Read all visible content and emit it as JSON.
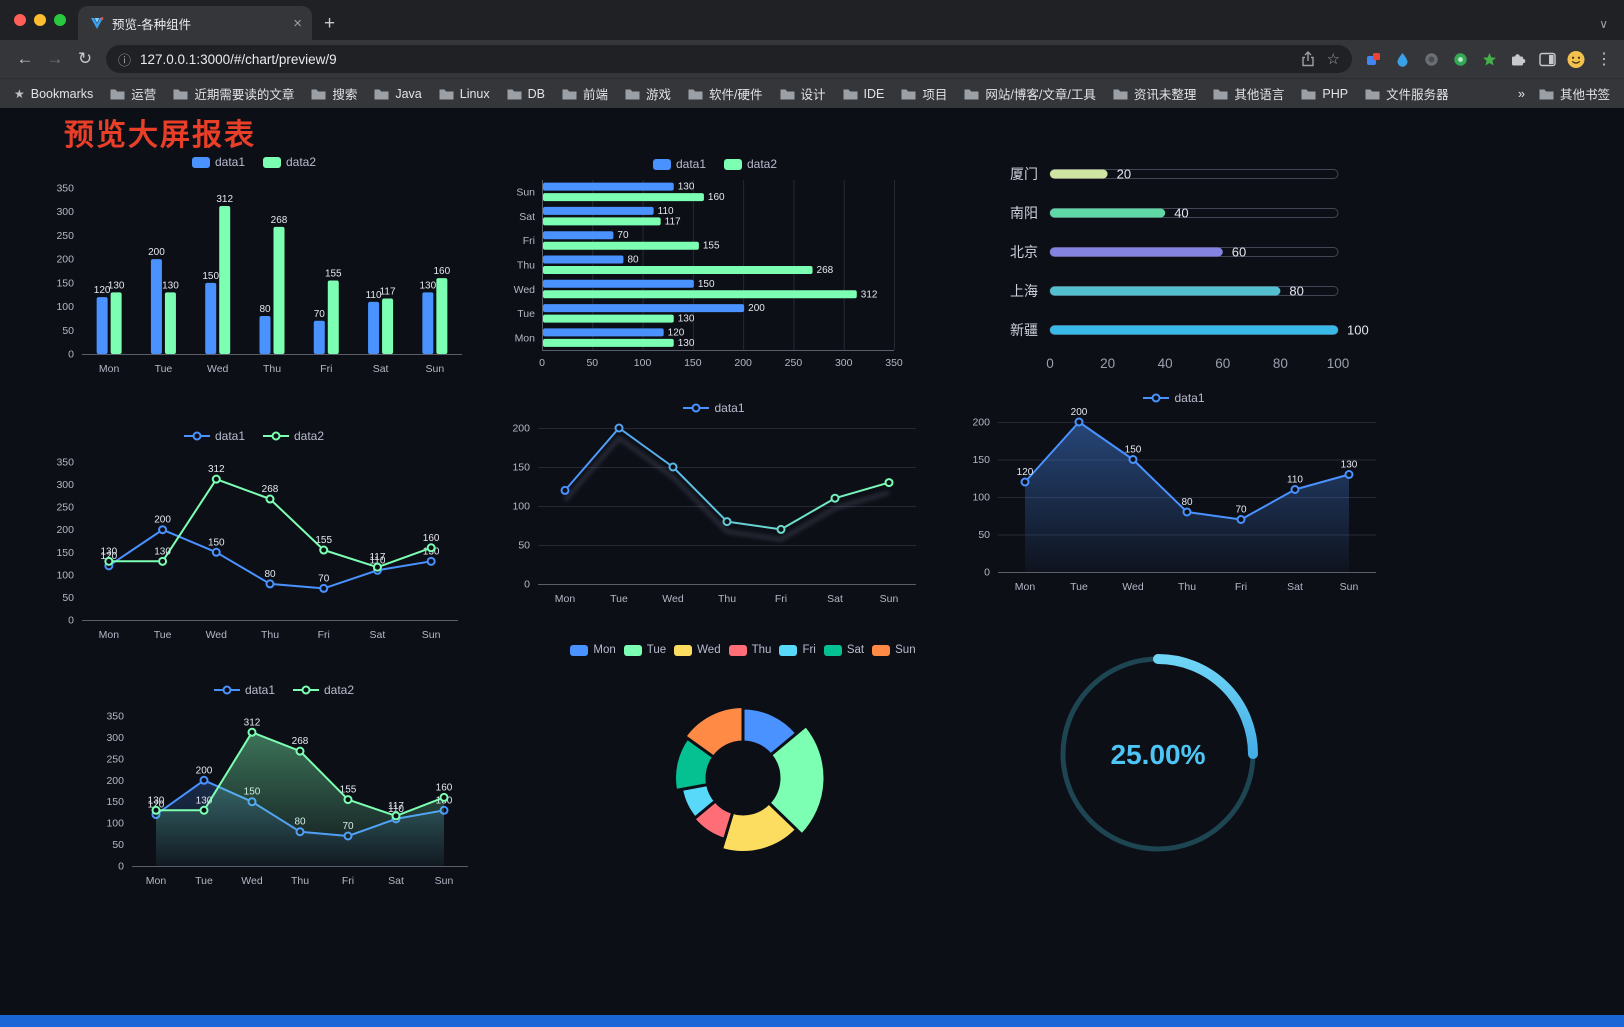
{
  "browser": {
    "tab": {
      "title": "预览-各种组件"
    },
    "address": {
      "url": "127.0.0.1:3000/#/chart/preview/9"
    },
    "bookmarks_bar": {
      "root_label": "Bookmarks",
      "folders": [
        "运营",
        "近期需要读的文章",
        "搜索",
        "Java",
        "Linux",
        "DB",
        "前端",
        "游戏",
        "软件/硬件",
        "设计",
        "IDE",
        "项目",
        "网站/博客/文章/工具",
        "资讯未整理",
        "其他语言",
        "PHP",
        "文件服务器"
      ],
      "overflow": "»",
      "other_label": "其他书签"
    }
  },
  "icons": {
    "back": "←",
    "forward": "→",
    "reload": "↻",
    "site_info": "ⓘ",
    "bookmark_star": "☆",
    "menu": "⋮",
    "new_tab": "+",
    "tab_close": "×",
    "tab_search": "∨",
    "bookmarks_root_star": "★"
  },
  "page": {
    "title": "预览大屏报表",
    "title_color": "#e93f28"
  },
  "chart_data": [
    {
      "id": "grouped-bar",
      "type": "bar",
      "categories": [
        "Mon",
        "Tue",
        "Wed",
        "Thu",
        "Fri",
        "Sat",
        "Sun"
      ],
      "series": [
        {
          "name": "data1",
          "color": "#4992ff",
          "values": [
            120,
            200,
            150,
            80,
            70,
            110,
            130
          ]
        },
        {
          "name": "data2",
          "color": "#7cffb2",
          "values": [
            130,
            130,
            312,
            268,
            155,
            117,
            160
          ]
        }
      ],
      "ylim": [
        0,
        350
      ],
      "yticks": [
        0,
        50,
        100,
        150,
        200,
        250,
        300,
        350
      ],
      "legend_position": "top"
    },
    {
      "id": "horizontal-bar",
      "type": "bar",
      "orientation": "horizontal",
      "categories": [
        "Mon",
        "Tue",
        "Wed",
        "Thu",
        "Fri",
        "Sat",
        "Sun"
      ],
      "series": [
        {
          "name": "data1",
          "color": "#4992ff",
          "values": [
            120,
            200,
            150,
            80,
            70,
            110,
            130
          ]
        },
        {
          "name": "data2",
          "color": "#7cffb2",
          "values": [
            130,
            130,
            312,
            268,
            155,
            117,
            160
          ]
        }
      ],
      "xlim": [
        0,
        350
      ],
      "xticks": [
        0,
        50,
        100,
        150,
        200,
        250,
        300,
        350
      ],
      "note": "Mon at bottom, Sun at top",
      "legend_position": "top"
    },
    {
      "id": "city-progress",
      "type": "bar",
      "orientation": "horizontal-progress",
      "categories": [
        "厦门",
        "南阳",
        "北京",
        "上海",
        "新疆"
      ],
      "values": [
        20,
        40,
        60,
        80,
        100
      ],
      "colors": [
        "#cfe6a3",
        "#5fd8a5",
        "#8583e1",
        "#54bfce",
        "#38b9e8"
      ],
      "xlim": [
        0,
        100
      ],
      "xticks": [
        0,
        20,
        40,
        60,
        80,
        100
      ]
    },
    {
      "id": "multi-line",
      "type": "line",
      "categories": [
        "Mon",
        "Tue",
        "Wed",
        "Thu",
        "Fri",
        "Sat",
        "Sun"
      ],
      "series": [
        {
          "name": "data1",
          "color": "#4992ff",
          "values": [
            120,
            200,
            150,
            80,
            70,
            110,
            130
          ]
        },
        {
          "name": "data2",
          "color": "#7cffb2",
          "values": [
            130,
            130,
            312,
            268,
            155,
            117,
            160
          ]
        }
      ],
      "ylim": [
        0,
        350
      ],
      "yticks": [
        0,
        50,
        100,
        150,
        200,
        250,
        300,
        350
      ],
      "legend_position": "top"
    },
    {
      "id": "gradient-line",
      "type": "line",
      "categories": [
        "Mon",
        "Tue",
        "Wed",
        "Thu",
        "Fri",
        "Sat",
        "Sun"
      ],
      "series": [
        {
          "name": "data1",
          "color_start": "#4992ff",
          "color_end": "#7cffb2",
          "values": [
            120,
            200,
            150,
            80,
            70,
            110,
            130
          ]
        }
      ],
      "ylim": [
        0,
        200
      ],
      "yticks": [
        0,
        50,
        100,
        150,
        200
      ],
      "legend_position": "top"
    },
    {
      "id": "area-line",
      "type": "area",
      "categories": [
        "Mon",
        "Tue",
        "Wed",
        "Thu",
        "Fri",
        "Sat",
        "Sun"
      ],
      "series": [
        {
          "name": "data1",
          "color": "#4992ff",
          "values": [
            120,
            200,
            150,
            80,
            70,
            110,
            130
          ]
        }
      ],
      "ylim": [
        0,
        200
      ],
      "yticks": [
        0,
        50,
        100,
        150,
        200
      ],
      "legend_position": "top"
    },
    {
      "id": "multi-area-line",
      "type": "area",
      "categories": [
        "Mon",
        "Tue",
        "Wed",
        "Thu",
        "Fri",
        "Sat",
        "Sun"
      ],
      "series": [
        {
          "name": "data1",
          "color": "#4992ff",
          "values": [
            120,
            200,
            150,
            80,
            70,
            110,
            130
          ]
        },
        {
          "name": "data2",
          "color": "#7cffb2",
          "values": [
            130,
            130,
            312,
            268,
            155,
            117,
            160
          ]
        }
      ],
      "ylim": [
        0,
        350
      ],
      "yticks": [
        0,
        50,
        100,
        150,
        200,
        250,
        300,
        350
      ],
      "legend_position": "top"
    },
    {
      "id": "weekday-donut",
      "type": "pie",
      "style": "rose-donut",
      "categories": [
        "Mon",
        "Tue",
        "Wed",
        "Thu",
        "Fri",
        "Sat",
        "Sun"
      ],
      "values": [
        120,
        200,
        150,
        80,
        70,
        110,
        130
      ],
      "colors": [
        "#4992ff",
        "#7cffb2",
        "#fddd60",
        "#ff6e76",
        "#58d9f9",
        "#05c091",
        "#ff8a45"
      ],
      "legend_position": "top"
    },
    {
      "id": "progress-gauge",
      "type": "gauge",
      "value": 25,
      "label": "25.00%",
      "color": "#3bb5e8",
      "track_color": "#1d4552"
    }
  ]
}
